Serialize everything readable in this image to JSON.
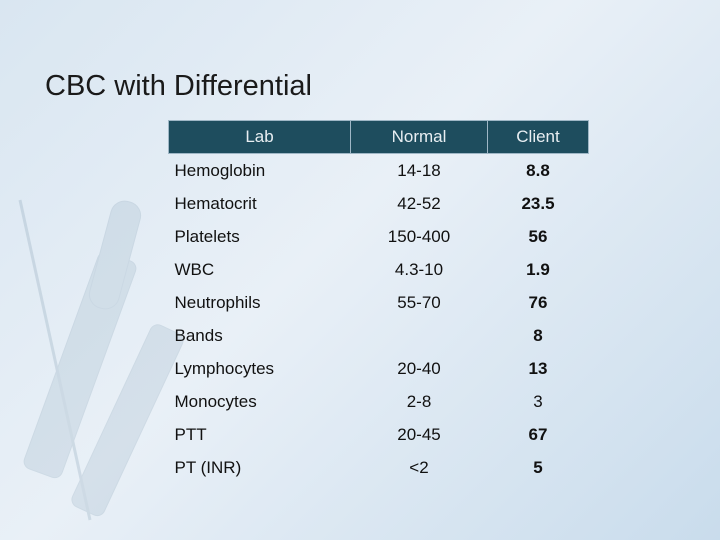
{
  "title": "CBC with Differential",
  "table": {
    "header": [
      "Lab",
      "Normal",
      "Client"
    ],
    "rows": [
      [
        "Hemoglobin",
        "14-18",
        "8.8"
      ],
      [
        "Hematocrit",
        "42-52",
        "23.5"
      ],
      [
        "Platelets",
        "150-400",
        "56"
      ],
      [
        "WBC",
        "4.3-10",
        "1.9"
      ],
      [
        "Neutrophils",
        "55-70",
        "76"
      ],
      [
        "Bands",
        null,
        "8"
      ],
      [
        "Lymphocytes",
        "20-40",
        "13"
      ],
      [
        "Monocytes",
        "2-8",
        "3"
      ],
      [
        "PTT",
        "20-45",
        "67"
      ],
      [
        "PT (INR)",
        "<2",
        "5"
      ]
    ]
  }
}
